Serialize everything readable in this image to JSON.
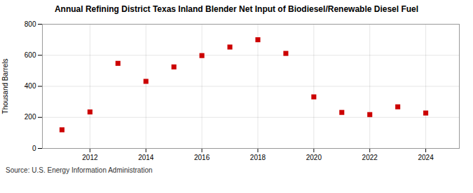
{
  "chart_data": {
    "type": "scatter",
    "title": "Annual Refining District Texas Inland Blender Net Input of Biodiesel/Renewable Diesel Fuel",
    "ylabel": "Thousand Barrels",
    "source": "Source: U.S. Energy Information Administration",
    "x": [
      2011,
      2012,
      2013,
      2014,
      2015,
      2016,
      2017,
      2018,
      2019,
      2020,
      2021,
      2022,
      2023,
      2024
    ],
    "values": [
      120,
      235,
      548,
      432,
      525,
      598,
      653,
      700,
      612,
      332,
      232,
      218,
      268,
      228
    ],
    "color": "#cc0000",
    "marker": "square",
    "xlim": [
      2010.3,
      2025.2
    ],
    "xticks": [
      2012,
      2014,
      2016,
      2018,
      2020,
      2022,
      2024
    ],
    "ylim": [
      0,
      800
    ],
    "yticks": [
      0,
      200,
      400,
      600,
      800
    ],
    "grid": true
  }
}
